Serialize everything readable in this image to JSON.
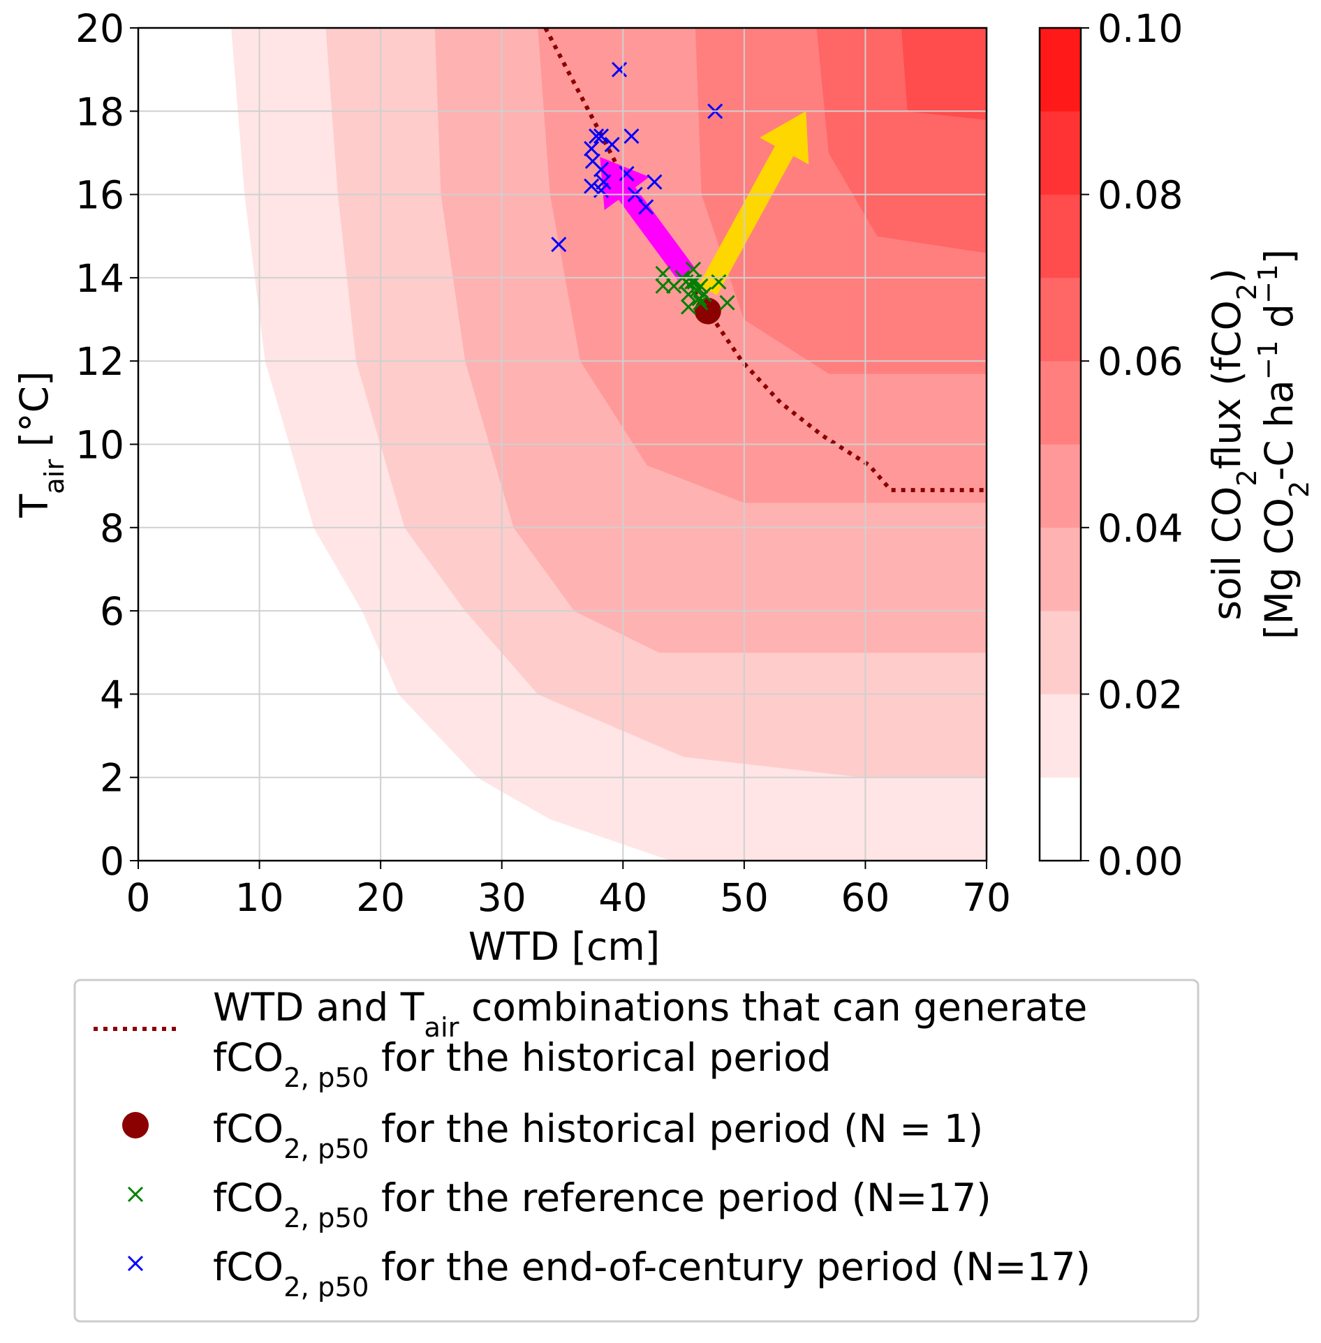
{
  "chart_data": {
    "type": "contour",
    "x_label": "WTD [cm]",
    "y_label": [
      "T",
      {
        "sub": "air"
      },
      " [°C]"
    ],
    "xlim": [
      0,
      70
    ],
    "ylim": [
      0,
      20
    ],
    "xticks": [
      0,
      10,
      20,
      30,
      40,
      50,
      60,
      70
    ],
    "yticks": [
      0,
      2,
      4,
      6,
      8,
      10,
      12,
      14,
      16,
      18,
      20
    ],
    "grid": true,
    "legend": "below",
    "colorbar": {
      "levels": [
        0,
        0.01,
        0.02,
        0.03,
        0.04,
        0.05,
        0.06,
        0.07,
        0.08,
        0.09,
        0.1
      ],
      "colors": [
        "#ffffff",
        "#ffe5e5",
        "#ffcccc",
        "#ffb2b2",
        "#ff9999",
        "#ff7f7f",
        "#ff6666",
        "#ff4c4c",
        "#ff3333",
        "#ff1919"
      ],
      "lim": [
        0,
        0.1
      ],
      "ticks": [
        {
          "value": 0,
          "label": "0.00"
        },
        {
          "value": 0.02,
          "label": "0.02"
        },
        {
          "value": 0.04,
          "label": "0.04"
        },
        {
          "value": 0.06,
          "label": "0.06"
        },
        {
          "value": 0.08,
          "label": "0.08"
        },
        {
          "value": 0.1,
          "label": "0.10"
        }
      ],
      "label": [
        [
          "soil CO",
          {
            "sub": "2"
          },
          "flux (fCO",
          {
            "sub": "2"
          },
          ")"
        ],
        [
          "[Mg CO",
          {
            "sub": "2"
          },
          "-C ha",
          {
            "sup": "−1"
          },
          " d",
          {
            "sup": "−1"
          },
          "]"
        ]
      ]
    },
    "contours": [
      {
        "level": 0.01,
        "x": [
          7.7,
          8.8,
          10.5,
          14.5,
          18.5,
          21.5,
          28,
          34,
          44
        ],
        "y": [
          20,
          16,
          12,
          8,
          6,
          4,
          2,
          1,
          0
        ]
      },
      {
        "level": 0.02,
        "x": [
          15.5,
          16.5,
          18,
          22,
          27,
          33,
          45,
          60,
          70
        ],
        "y": [
          20,
          16,
          12,
          8,
          6,
          4,
          2.5,
          2,
          2
        ]
      },
      {
        "level": 0.03,
        "x": [
          24.5,
          25,
          27,
          31,
          36,
          43,
          55,
          70
        ],
        "y": [
          20,
          16,
          12,
          8,
          6,
          5,
          5,
          5
        ]
      },
      {
        "level": 0.04,
        "x": [
          33,
          34,
          36.5,
          42,
          50,
          70
        ],
        "y": [
          20,
          16,
          12,
          9.5,
          8.6,
          8.6
        ]
      },
      {
        "level": 0.05,
        "x": [
          46,
          46.5,
          50,
          57,
          70
        ],
        "y": [
          20,
          16,
          13,
          11.7,
          11.7
        ]
      },
      {
        "level": 0.06,
        "x": [
          56,
          57,
          61,
          70
        ],
        "y": [
          20,
          17,
          15,
          14.6
        ]
      },
      {
        "level": 0.07,
        "x": [
          63,
          63.5,
          70
        ],
        "y": [
          20,
          18,
          17.8
        ]
      }
    ],
    "series": [
      {
        "name": [
          [
            "WTD and T",
            {
              "sub": "air"
            },
            " combinations that can generate"
          ],
          [
            "fCO",
            {
              "sub": "2, p50"
            },
            " for the historical period"
          ]
        ],
        "style": "dotted",
        "color": "#8b0000",
        "x": [
          33.6,
          37.9,
          42,
          47,
          49.8,
          53,
          56.5,
          60.3,
          62.1,
          70
        ],
        "y": [
          20,
          17.6,
          15.3,
          13.2,
          12,
          11,
          10.2,
          9.5,
          8.9,
          8.9
        ]
      },
      {
        "name": [
          [
            "fCO",
            {
              "sub": "2, p50"
            },
            " for the historical period (N = 1)"
          ]
        ],
        "style": "dot",
        "color": "#8b0000",
        "x": [
          47
        ],
        "y": [
          13.2
        ]
      },
      {
        "name": [
          [
            "fCO",
            {
              "sub": "2, p50"
            },
            " for the reference period (N=17)"
          ]
        ],
        "style": "cross",
        "color": "#008000",
        "x": [
          43.3,
          43.3,
          44.2,
          44.9,
          45.2,
          45.4,
          45.4,
          45.8,
          45.9,
          46.1,
          46.3,
          46.4,
          46.7,
          47.9,
          48.6,
          45.7,
          46.4
        ],
        "y": [
          14.1,
          13.8,
          13.8,
          14.0,
          13.9,
          13.6,
          13.3,
          14.2,
          13.9,
          13.7,
          13.5,
          13.4,
          13.6,
          13.9,
          13.4,
          13.9,
          13.8
        ]
      },
      {
        "name": [
          [
            "fCO",
            {
              "sub": "2, p50"
            },
            " for the end-of-century period (N=17)"
          ]
        ],
        "style": "cross",
        "color": "#0000ff",
        "x": [
          39.7,
          47.6,
          37.4,
          37.8,
          38.2,
          39.1,
          40.7,
          37.5,
          38.2,
          38.4,
          40.3,
          42.6,
          37.4,
          38.2,
          41.0,
          41.9,
          34.7
        ],
        "y": [
          19.0,
          18.0,
          17.1,
          17.4,
          17.4,
          17.2,
          17.4,
          16.8,
          16.6,
          16.3,
          16.5,
          16.3,
          16.2,
          16.1,
          16.0,
          15.7,
          14.8
        ]
      }
    ],
    "arrows": [
      {
        "color": "#ffd700",
        "x": [
          47,
          55.1
        ],
        "y": [
          13.7,
          18.0
        ]
      },
      {
        "color": "#ff00ff",
        "x": [
          45.2,
          38.1
        ],
        "y": [
          14.1,
          16.9
        ]
      }
    ]
  }
}
